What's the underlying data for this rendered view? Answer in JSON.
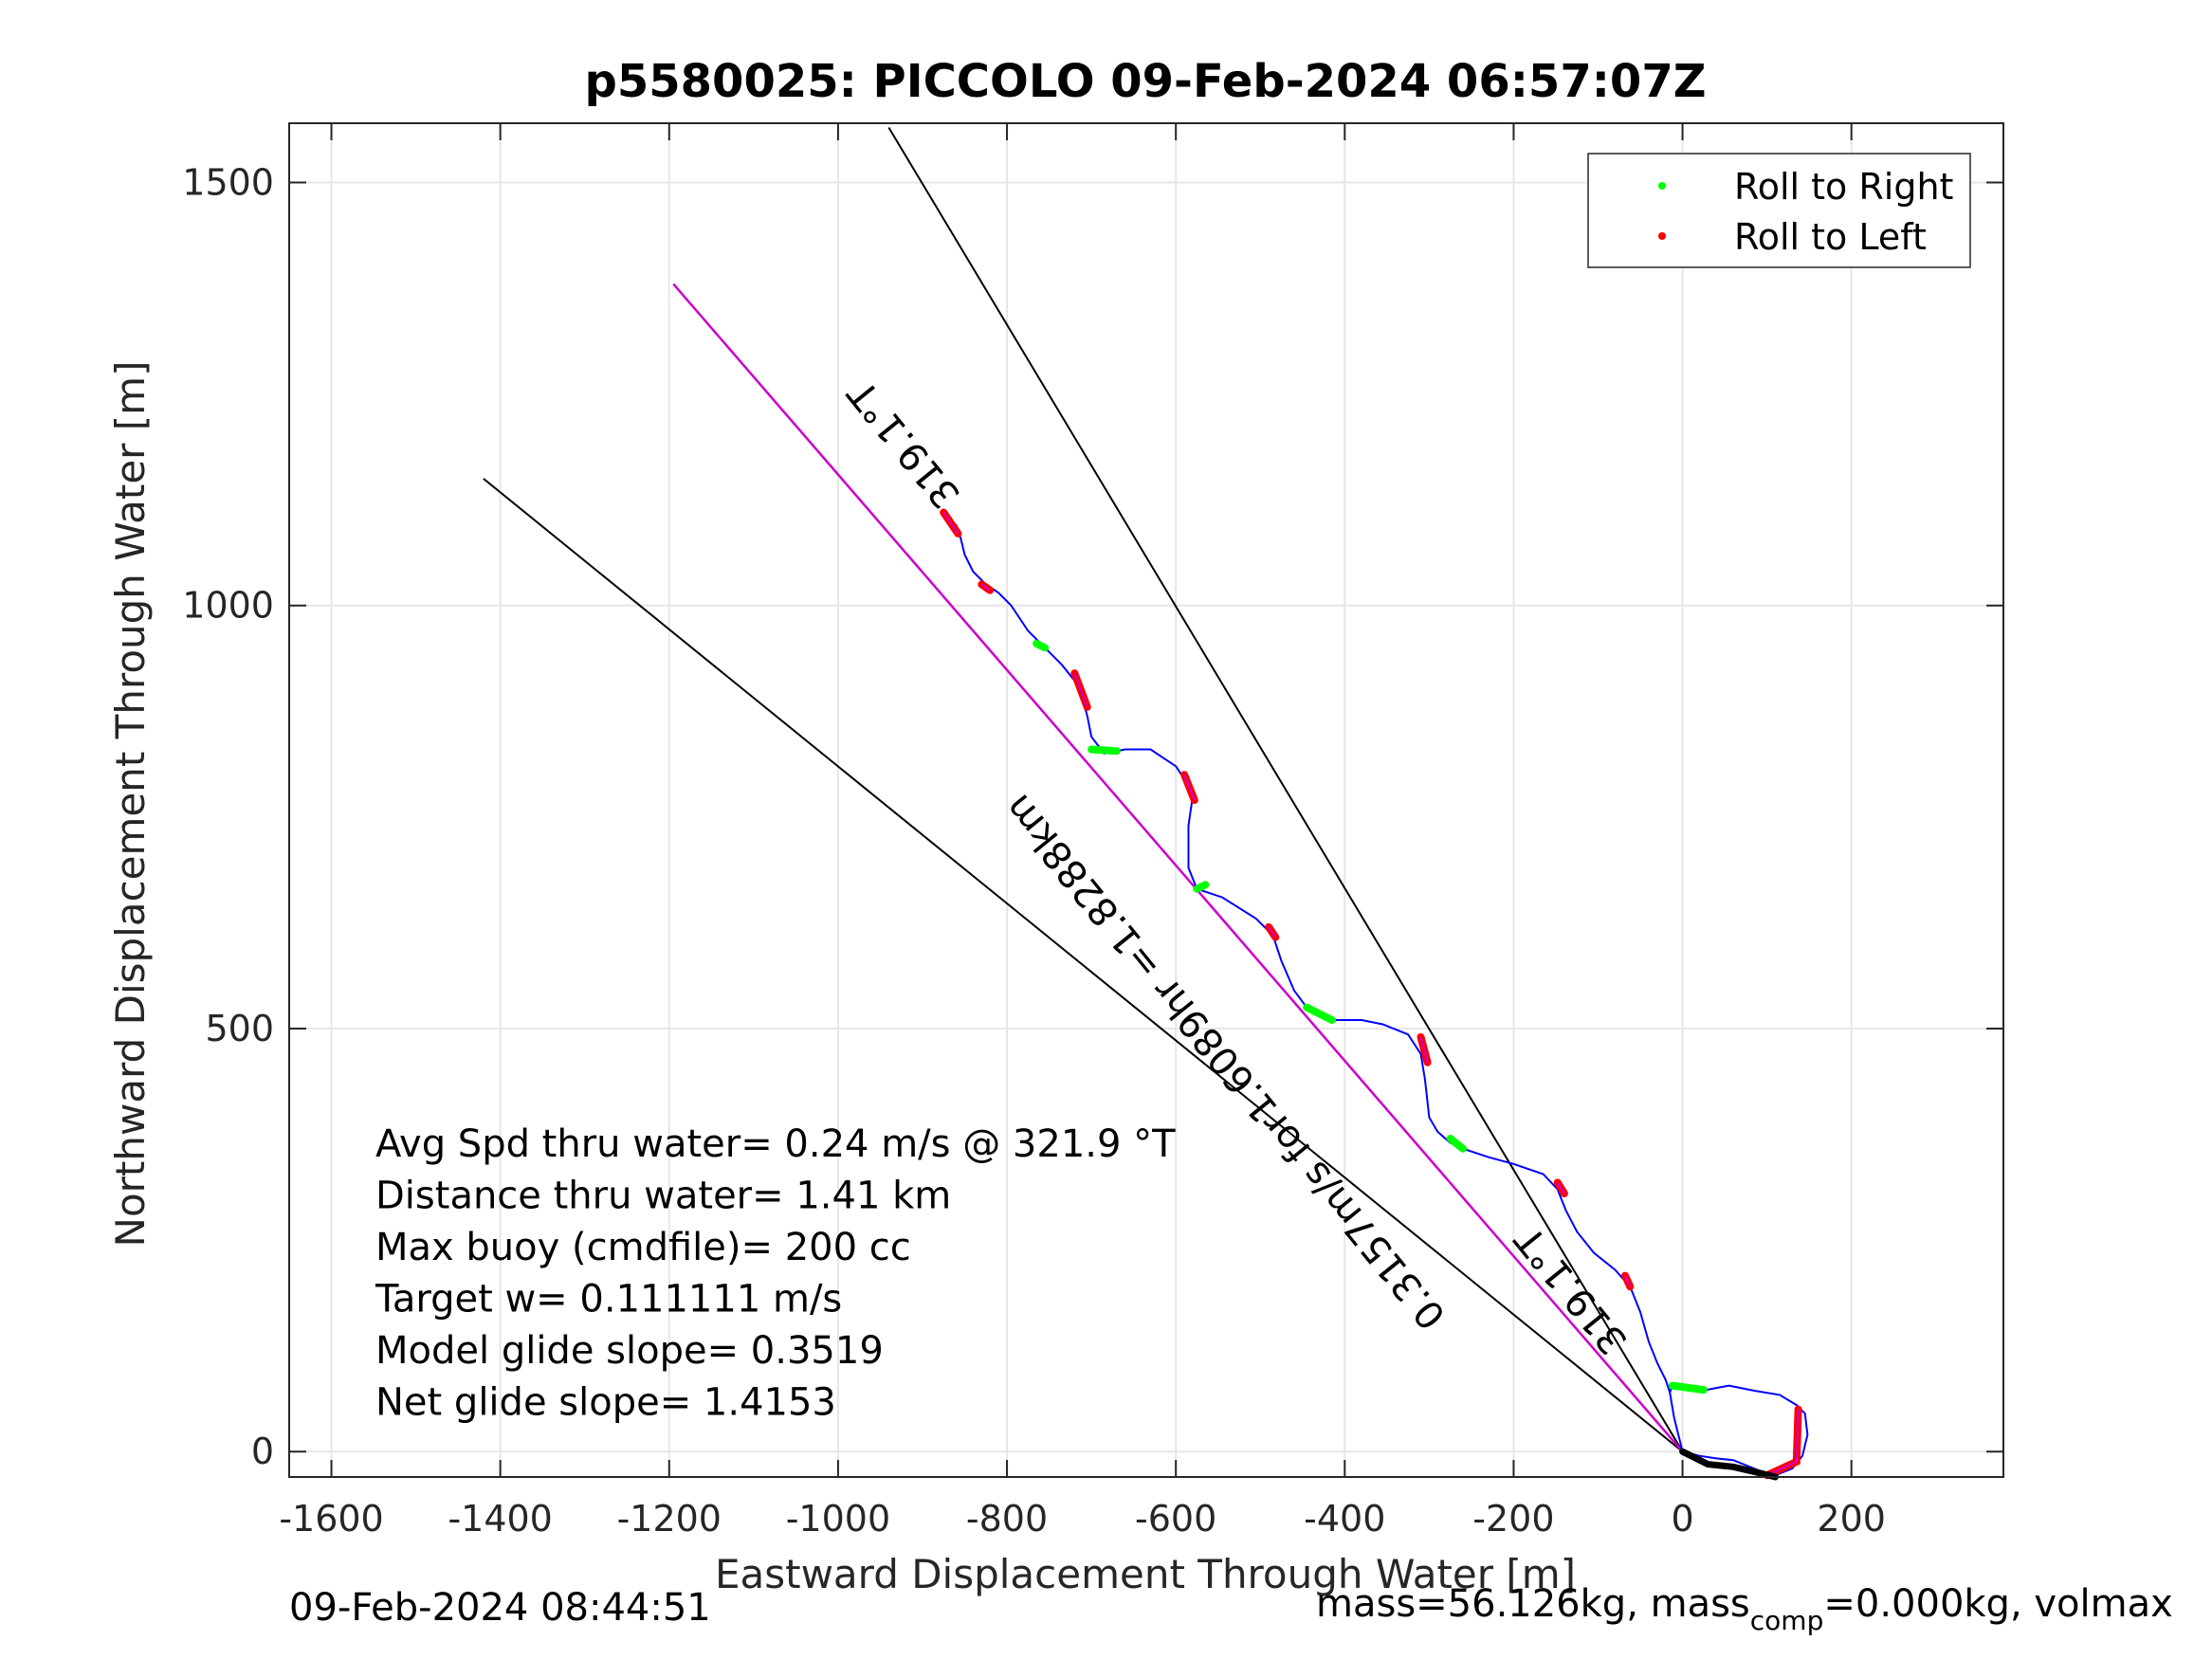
{
  "chart_data": {
    "type": "line",
    "title": "p5580025: PICCOLO 09-Feb-2024 06:57:07Z",
    "xlabel": "Eastward Displacement Through Water [m]",
    "ylabel": "Northward Displacement Through Water [m]",
    "xlim": [
      -1650,
      380
    ],
    "ylim": [
      -30,
      1570
    ],
    "xticks": [
      -1600,
      -1400,
      -1200,
      -1000,
      -800,
      -600,
      -400,
      -200,
      0,
      200
    ],
    "xtick_labels": [
      "-1600",
      "-1400",
      "-1200",
      "-1000",
      "-800",
      "-600",
      "-400",
      "-200",
      "0",
      "200"
    ],
    "yticks": [
      0,
      500,
      1000,
      1500
    ],
    "ytick_labels": [
      "0",
      "500",
      "1000",
      "1500"
    ],
    "grid": true,
    "legend": {
      "position": "top-right",
      "entries": [
        {
          "label": "Roll to Right",
          "color": "#00ff00"
        },
        {
          "label": "Roll to Left",
          "color": "#ff0000"
        }
      ]
    },
    "colors": {
      "track": "#0000ff",
      "net_line": "#cc00cc",
      "heading_lines": "#000000",
      "roll_right": "#00ff00",
      "roll_left": "#ff0000",
      "dive_path": "#000000"
    },
    "series": [
      {
        "name": "track",
        "points": [
          [
            0,
            0
          ],
          [
            -10,
            40
          ],
          [
            -15,
            70
          ],
          [
            -12,
            78
          ],
          [
            10,
            75
          ],
          [
            28,
            73
          ],
          [
            55,
            78
          ],
          [
            85,
            72
          ],
          [
            115,
            67
          ],
          [
            135,
            55
          ],
          [
            145,
            45
          ],
          [
            148,
            20
          ],
          [
            142,
            -5
          ],
          [
            130,
            -20
          ],
          [
            110,
            -28
          ],
          [
            90,
            -22
          ],
          [
            60,
            -10
          ],
          [
            40,
            -8
          ],
          [
            20,
            -5
          ],
          [
            0,
            0
          ]
        ]
      },
      {
        "name": "track-climb",
        "points": [
          [
            -15,
            70
          ],
          [
            -20,
            85
          ],
          [
            -30,
            105
          ],
          [
            -40,
            130
          ],
          [
            -50,
            165
          ],
          [
            -60,
            190
          ],
          [
            -65,
            198
          ],
          [
            -80,
            215
          ],
          [
            -105,
            235
          ],
          [
            -125,
            260
          ],
          [
            -138,
            285
          ],
          [
            -148,
            310
          ],
          [
            -165,
            328
          ],
          [
            -200,
            340
          ],
          [
            -230,
            348
          ],
          [
            -260,
            358
          ],
          [
            -275,
            365
          ],
          [
            -290,
            378
          ],
          [
            -300,
            395
          ],
          [
            -305,
            440
          ],
          [
            -310,
            470
          ],
          [
            -325,
            493
          ],
          [
            -355,
            505
          ],
          [
            -380,
            510
          ],
          [
            -410,
            510
          ],
          [
            -430,
            515
          ],
          [
            -445,
            525
          ],
          [
            -460,
            545
          ],
          [
            -475,
            580
          ],
          [
            -485,
            610
          ],
          [
            -505,
            630
          ],
          [
            -545,
            655
          ],
          [
            -575,
            665
          ],
          [
            -585,
            690
          ],
          [
            -585,
            740
          ],
          [
            -580,
            775
          ],
          [
            -590,
            795
          ],
          [
            -600,
            810
          ],
          [
            -630,
            830
          ],
          [
            -660,
            830
          ],
          [
            -685,
            825
          ],
          [
            -700,
            845
          ],
          [
            -705,
            870
          ],
          [
            -715,
            905
          ],
          [
            -735,
            930
          ],
          [
            -755,
            950
          ],
          [
            -775,
            970
          ],
          [
            -795,
            1000
          ],
          [
            -810,
            1015
          ],
          [
            -825,
            1025
          ],
          [
            -840,
            1040
          ],
          [
            -850,
            1060
          ],
          [
            -855,
            1080
          ],
          [
            -860,
            1095
          ],
          [
            -875,
            1105
          ]
        ]
      }
    ],
    "roll_right_segments": [
      [
        [
          -12,
          78
        ],
        [
          25,
          73
        ]
      ],
      [
        [
          -275,
          370
        ],
        [
          -260,
          358
        ]
      ],
      [
        [
          -445,
          525
        ],
        [
          -415,
          510
        ]
      ],
      [
        [
          -575,
          665
        ],
        [
          -565,
          670
        ]
      ],
      [
        [
          -700,
          830
        ],
        [
          -670,
          828
        ]
      ],
      [
        [
          -765,
          955
        ],
        [
          -755,
          950
        ]
      ]
    ],
    "roll_left_segments": [
      [
        [
          137,
          50
        ],
        [
          135,
          -12
        ],
        [
          100,
          -28
        ]
      ],
      [
        [
          -68,
          208
        ],
        [
          -62,
          195
        ]
      ],
      [
        [
          -148,
          318
        ],
        [
          -140,
          305
        ]
      ],
      [
        [
          -310,
          490
        ],
        [
          -302,
          460
        ]
      ],
      [
        [
          -490,
          620
        ],
        [
          -482,
          608
        ]
      ],
      [
        [
          -590,
          800
        ],
        [
          -578,
          770
        ]
      ],
      [
        [
          -720,
          920
        ],
        [
          -705,
          880
        ]
      ],
      [
        [
          -830,
          1025
        ],
        [
          -820,
          1018
        ]
      ],
      [
        [
          -875,
          1110
        ],
        [
          -858,
          1085
        ]
      ]
    ],
    "dive_path": [
      [
        0,
        0
      ],
      [
        30,
        -15
      ],
      [
        60,
        -18
      ],
      [
        90,
        -25
      ],
      [
        110,
        -30
      ]
    ],
    "heading_lines": [
      {
        "from": [
          0,
          0
        ],
        "to": [
          -940,
          1565
        ]
      },
      {
        "from": [
          0,
          0
        ],
        "to": [
          -1420,
          1150
        ]
      }
    ],
    "net_line": {
      "from": [
        0,
        0
      ],
      "to": [
        -1195,
        1380
      ]
    },
    "stats": [
      "Avg Spd thru water=  0.24 m/s @ 321.9 °T",
      "Distance thru water=  1.41 km",
      "Max buoy (cmdfile)= 200 cc",
      "Target w= 0.111111 m/s",
      "Model glide slope= 0.3519",
      "Net glide slope= 1.4153"
    ],
    "annotations": [
      {
        "text": "319.1°T",
        "at": [
          -910,
          1200
        ],
        "rotation_deg": 231
      },
      {
        "text": "0.3157m/s for1.6089hr =1.8288km",
        "at": [
          -530,
          470
        ],
        "rotation_deg": 231
      },
      {
        "text": "319.1°T",
        "at": [
          -120,
          200
        ],
        "rotation_deg": 231
      }
    ]
  },
  "footer": {
    "left": "09-Feb-2024 08:44:51",
    "right_prefix": "mass=56.126kg, mass",
    "right_sub": "comp",
    "right_suffix": "=0.000kg, volmax"
  }
}
